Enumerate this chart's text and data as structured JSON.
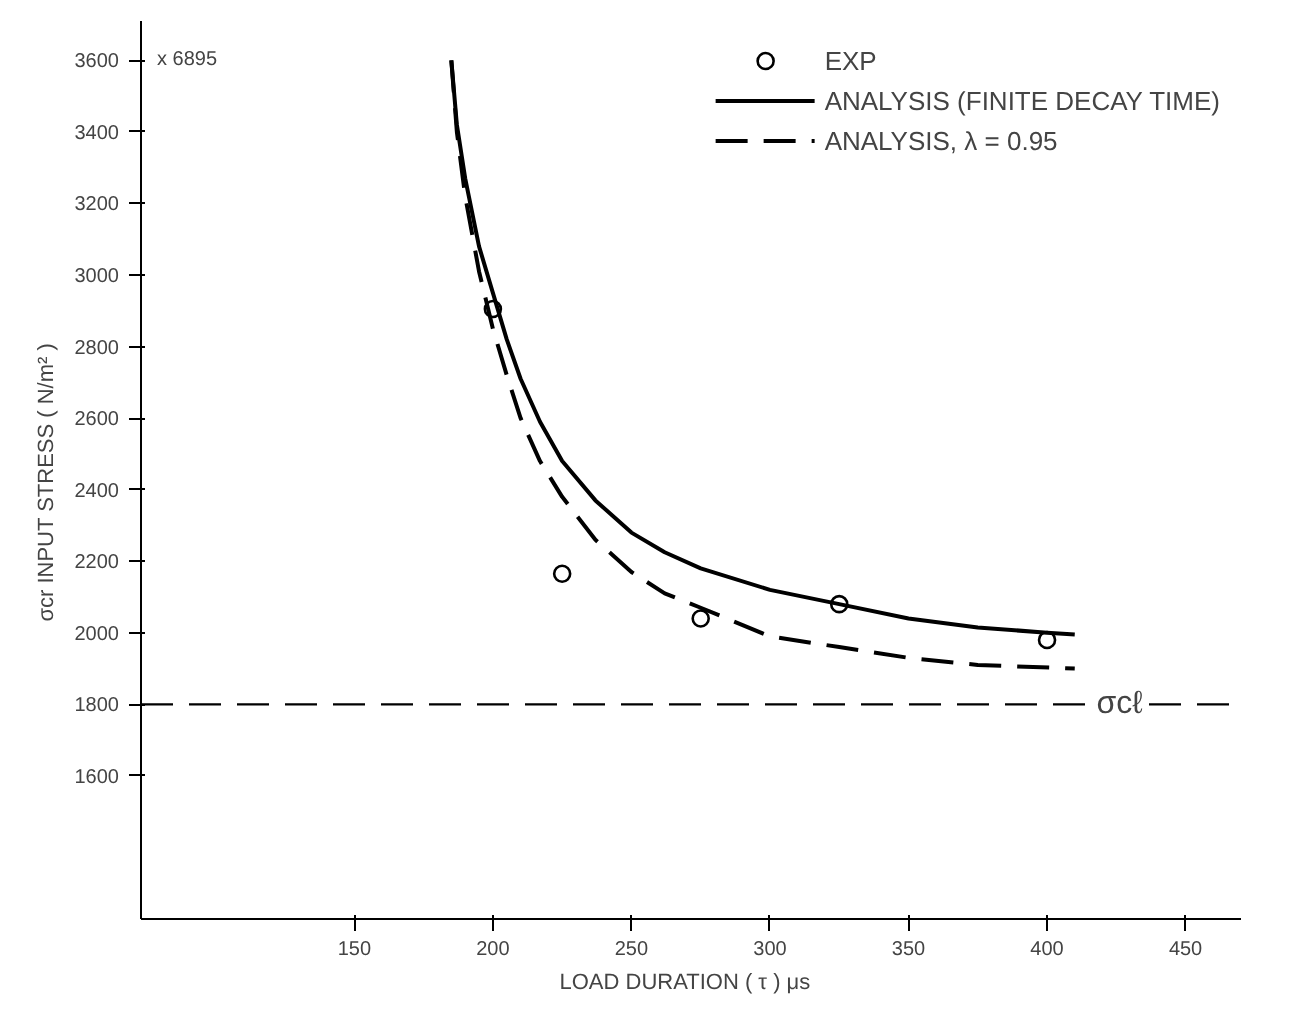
{
  "chart_data": {
    "type": "line",
    "xlabel": "LOAD DURATION  ( τ )  μs",
    "ylabel": "σcr   INPUT STRESS   ( N/m² )",
    "xlim": [
      73,
      470
    ],
    "ylim": [
      1200,
      3710
    ],
    "xticks": [
      150,
      200,
      250,
      300,
      350,
      400,
      450
    ],
    "yticks": [
      1600,
      1800,
      2000,
      2200,
      2400,
      2600,
      2800,
      3000,
      3200,
      3400,
      3600
    ],
    "grid": false,
    "legend": "top right",
    "annotations": [
      "x 6895"
    ],
    "ref_lines": [
      {
        "axis": "y",
        "value": 1800,
        "label": "σcℓ",
        "line_style": "dashed",
        "color": "#000000"
      }
    ],
    "series": [
      {
        "name": "EXP",
        "type": "scatter",
        "marker": "circle",
        "color": "#000000",
        "x": [
          200,
          225,
          275,
          325,
          400
        ],
        "values": [
          2905,
          2165,
          2040,
          2080,
          1980
        ]
      },
      {
        "name": "ANALYSIS (FINITE DECAY TIME)",
        "line_style": "solid",
        "color": "#000000",
        "x": [
          185,
          187,
          190,
          195,
          200,
          205,
          210,
          217,
          225,
          237,
          250,
          262,
          275,
          300,
          325,
          350,
          375,
          400,
          410
        ],
        "values": [
          3600,
          3420,
          3270,
          3080,
          2950,
          2820,
          2710,
          2590,
          2480,
          2370,
          2280,
          2225,
          2180,
          2120,
          2080,
          2040,
          2015,
          2000,
          1995
        ]
      },
      {
        "name": "ANALYSIS, λ = 0.95",
        "line_style": "dashed",
        "color": "#000000",
        "x": [
          185,
          187,
          190,
          195,
          200,
          205,
          210,
          217,
          225,
          237,
          250,
          262,
          275,
          300,
          325,
          350,
          375,
          410
        ],
        "values": [
          3600,
          3400,
          3220,
          3010,
          2850,
          2720,
          2600,
          2480,
          2380,
          2260,
          2170,
          2110,
          2070,
          1990,
          1960,
          1930,
          1910,
          1900
        ]
      }
    ]
  }
}
